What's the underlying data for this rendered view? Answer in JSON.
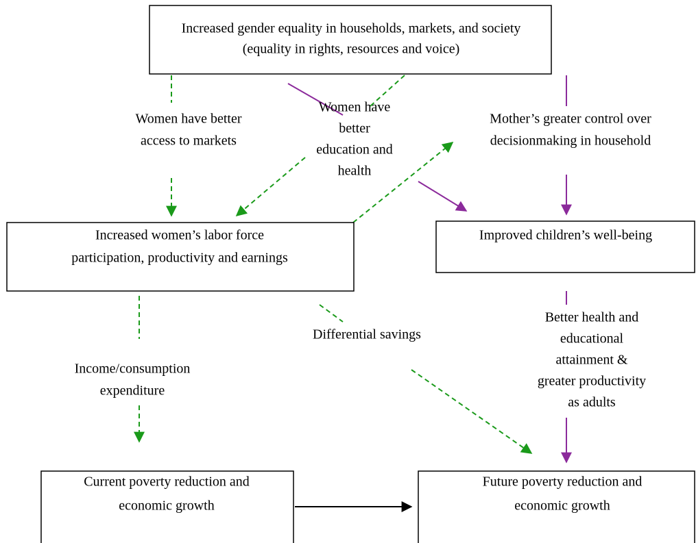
{
  "nodes": [
    {
      "lines": [
        "Increased gender equality in households, markets, and society",
        "(equality in rights, resources and voice)"
      ]
    },
    {
      "lines": [
        "Increased women’s labor force",
        "participation, productivity and earnings"
      ]
    },
    {
      "lines": [
        "Improved children’s well-being"
      ]
    },
    {
      "lines": [
        "Current poverty reduction and",
        "economic growth"
      ]
    },
    {
      "lines": [
        "Future poverty reduction and",
        "economic growth"
      ]
    }
  ],
  "edge_labels": [
    {
      "lines": [
        "Women have better",
        "access to markets"
      ]
    },
    {
      "lines": [
        "Women have",
        "better",
        "education and",
        "health"
      ]
    },
    {
      "lines": [
        "Mother’s greater control over",
        "decisionmaking in household"
      ]
    },
    {
      "lines": [
        "Differential savings"
      ]
    },
    {
      "lines": [
        "Income/consumption",
        "expenditure"
      ]
    },
    {
      "lines": [
        "Better health and",
        "educational",
        "attainment &",
        "greater productivity",
        "as adults"
      ]
    }
  ]
}
